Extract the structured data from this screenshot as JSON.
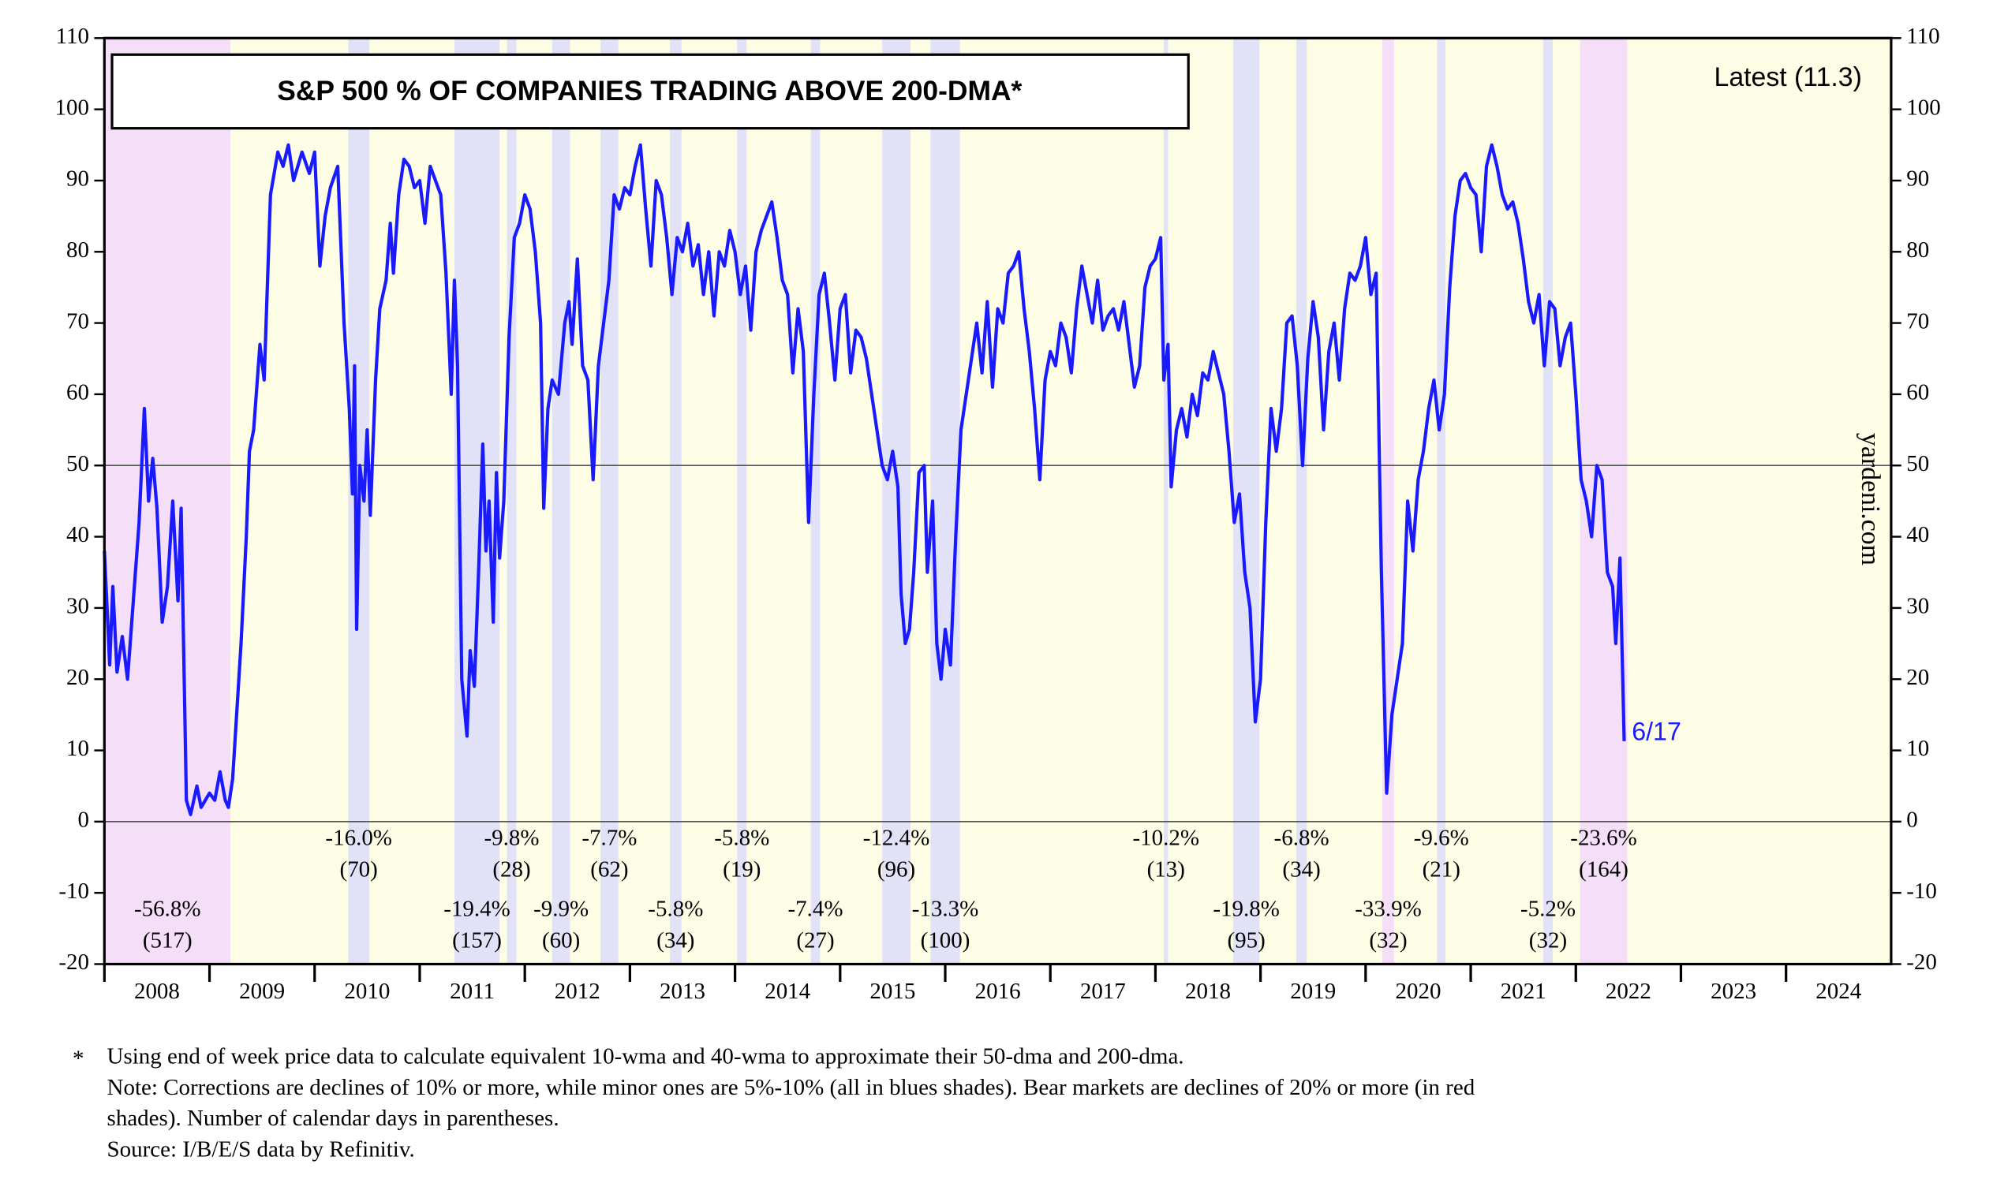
{
  "chart_data": {
    "type": "line",
    "title": "S&P 500 % OF COMPANIES TRADING ABOVE 200-DMA*",
    "latest_label": "Latest (11.3)",
    "end_label": "6/17",
    "watermark": "yardeni.com",
    "footnotes": [
      {
        "marker": "*",
        "text": "Using end of week price data to calculate equivalent 10-wma and 40-wma to approximate their 50-dma and 200-dma."
      },
      {
        "text": "Note: Corrections are declines of 10% or more, while minor ones are 5%-10% (all in blues shades). Bear markets are declines of 20% or more (in red"
      },
      {
        "text": "shades). Number of calendar days in parentheses."
      },
      {
        "text": "Source: I/B/E/S data by Refinitiv."
      }
    ],
    "xlim": [
      2008,
      2025
    ],
    "xticks": [
      2008,
      2009,
      2010,
      2011,
      2012,
      2013,
      2014,
      2015,
      2016,
      2017,
      2018,
      2019,
      2020,
      2021,
      2022,
      2023,
      2024
    ],
    "ylim": [
      -20,
      110
    ],
    "yticks": [
      -20,
      -10,
      0,
      10,
      20,
      30,
      40,
      50,
      60,
      70,
      80,
      90,
      100,
      110
    ],
    "reference_lines": [
      0,
      50
    ],
    "colors": {
      "background": "#fdfde6",
      "bear": "#f5dff8",
      "correction": "#e1e2f8"
    },
    "events": [
      {
        "start": 2008.0,
        "end": 2009.2,
        "kind": "bear",
        "decline": "-56.8%",
        "days": "(517)"
      },
      {
        "start": 2010.32,
        "end": 2010.52,
        "kind": "correction",
        "decline": "-16.0%",
        "days": "(70)"
      },
      {
        "start": 2011.33,
        "end": 2011.76,
        "kind": "correction",
        "decline": "-19.4%",
        "days": "(157)"
      },
      {
        "start": 2011.83,
        "end": 2011.92,
        "kind": "correction",
        "decline": "-9.8%",
        "days": "(28)"
      },
      {
        "start": 2012.26,
        "end": 2012.43,
        "kind": "correction",
        "decline": "-9.9%",
        "days": "(60)"
      },
      {
        "start": 2012.72,
        "end": 2012.89,
        "kind": "correction",
        "decline": "-7.7%",
        "days": "(62)"
      },
      {
        "start": 2013.38,
        "end": 2013.49,
        "kind": "correction",
        "decline": "-5.8%",
        "days": "(34)"
      },
      {
        "start": 2014.02,
        "end": 2014.11,
        "kind": "correction",
        "decline": "-5.8%",
        "days": "(19)"
      },
      {
        "start": 2014.72,
        "end": 2014.81,
        "kind": "correction",
        "decline": "-7.4%",
        "days": "(27)"
      },
      {
        "start": 2015.4,
        "end": 2015.67,
        "kind": "correction",
        "decline": "-12.4%",
        "days": "(96)"
      },
      {
        "start": 2015.86,
        "end": 2016.14,
        "kind": "correction",
        "decline": "-13.3%",
        "days": "(100)"
      },
      {
        "start": 2018.08,
        "end": 2018.12,
        "kind": "correction",
        "decline": "-10.2%",
        "days": "(13)"
      },
      {
        "start": 2018.74,
        "end": 2018.99,
        "kind": "correction",
        "decline": "-19.8%",
        "days": "(95)"
      },
      {
        "start": 2019.34,
        "end": 2019.44,
        "kind": "correction",
        "decline": "-6.8%",
        "days": "(34)"
      },
      {
        "start": 2020.16,
        "end": 2020.27,
        "kind": "bear",
        "decline": "-33.9%",
        "days": "(32)"
      },
      {
        "start": 2020.68,
        "end": 2020.76,
        "kind": "correction",
        "decline": "-9.6%",
        "days": "(21)"
      },
      {
        "start": 2021.69,
        "end": 2021.78,
        "kind": "correction",
        "decline": "-5.2%",
        "days": "(32)"
      },
      {
        "start": 2022.04,
        "end": 2022.49,
        "kind": "bear",
        "decline": "-23.6%",
        "days": "(164)"
      }
    ],
    "x": [
      2008.0,
      2008.05,
      2008.08,
      2008.12,
      2008.17,
      2008.22,
      2008.27,
      2008.33,
      2008.38,
      2008.42,
      2008.46,
      2008.5,
      2008.55,
      2008.6,
      2008.65,
      2008.7,
      2008.73,
      2008.78,
      2008.82,
      2008.88,
      2008.92,
      2009.0,
      2009.05,
      2009.1,
      2009.15,
      2009.18,
      2009.22,
      2009.3,
      2009.35,
      2009.38,
      2009.42,
      2009.48,
      2009.52,
      2009.58,
      2009.65,
      2009.7,
      2009.75,
      2009.8,
      2009.88,
      2009.95,
      2010.0,
      2010.05,
      2010.1,
      2010.15,
      2010.22,
      2010.28,
      2010.33,
      2010.36,
      2010.38,
      2010.4,
      2010.43,
      2010.47,
      2010.5,
      2010.53,
      2010.58,
      2010.62,
      2010.68,
      2010.72,
      2010.75,
      2010.8,
      2010.85,
      2010.9,
      2010.95,
      2011.0,
      2011.05,
      2011.1,
      2011.2,
      2011.25,
      2011.3,
      2011.33,
      2011.36,
      2011.4,
      2011.45,
      2011.48,
      2011.52,
      2011.56,
      2011.6,
      2011.63,
      2011.66,
      2011.7,
      2011.73,
      2011.76,
      2011.8,
      2011.85,
      2011.9,
      2011.95,
      2012.0,
      2012.05,
      2012.1,
      2012.15,
      2012.18,
      2012.22,
      2012.26,
      2012.32,
      2012.38,
      2012.42,
      2012.45,
      2012.5,
      2012.55,
      2012.6,
      2012.65,
      2012.7,
      2012.75,
      2012.8,
      2012.85,
      2012.9,
      2012.95,
      2013.0,
      2013.05,
      2013.1,
      2013.15,
      2013.2,
      2013.25,
      2013.3,
      2013.35,
      2013.4,
      2013.45,
      2013.5,
      2013.55,
      2013.6,
      2013.65,
      2013.7,
      2013.75,
      2013.8,
      2013.85,
      2013.9,
      2013.95,
      2014.0,
      2014.05,
      2014.1,
      2014.15,
      2014.2,
      2014.25,
      2014.3,
      2014.35,
      2014.4,
      2014.45,
      2014.5,
      2014.55,
      2014.6,
      2014.65,
      2014.7,
      2014.75,
      2014.8,
      2014.85,
      2014.9,
      2014.95,
      2015.0,
      2015.05,
      2015.1,
      2015.15,
      2015.2,
      2015.25,
      2015.3,
      2015.35,
      2015.4,
      2015.45,
      2015.5,
      2015.55,
      2015.58,
      2015.62,
      2015.66,
      2015.7,
      2015.75,
      2015.8,
      2015.83,
      2015.88,
      2015.92,
      2015.96,
      2016.0,
      2016.05,
      2016.1,
      2016.15,
      2016.2,
      2016.25,
      2016.3,
      2016.35,
      2016.4,
      2016.45,
      2016.5,
      2016.55,
      2016.6,
      2016.65,
      2016.7,
      2016.75,
      2016.8,
      2016.85,
      2016.9,
      2016.95,
      2017.0,
      2017.05,
      2017.1,
      2017.15,
      2017.2,
      2017.25,
      2017.3,
      2017.35,
      2017.4,
      2017.45,
      2017.5,
      2017.55,
      2017.6,
      2017.65,
      2017.7,
      2017.75,
      2017.8,
      2017.85,
      2017.9,
      2017.95,
      2018.0,
      2018.05,
      2018.08,
      2018.12,
      2018.15,
      2018.2,
      2018.25,
      2018.3,
      2018.35,
      2018.4,
      2018.45,
      2018.5,
      2018.55,
      2018.6,
      2018.65,
      2018.7,
      2018.75,
      2018.8,
      2018.85,
      2018.9,
      2018.95,
      2019.0,
      2019.05,
      2019.1,
      2019.15,
      2019.2,
      2019.25,
      2019.3,
      2019.35,
      2019.4,
      2019.45,
      2019.5,
      2019.55,
      2019.6,
      2019.65,
      2019.7,
      2019.75,
      2019.8,
      2019.85,
      2019.9,
      2019.95,
      2020.0,
      2020.05,
      2020.1,
      2020.15,
      2020.2,
      2020.25,
      2020.3,
      2020.35,
      2020.4,
      2020.45,
      2020.5,
      2020.55,
      2020.6,
      2020.65,
      2020.7,
      2020.75,
      2020.8,
      2020.85,
      2020.9,
      2020.95,
      2021.0,
      2021.05,
      2021.1,
      2021.15,
      2021.2,
      2021.25,
      2021.3,
      2021.35,
      2021.4,
      2021.45,
      2021.5,
      2021.55,
      2021.6,
      2021.65,
      2021.7,
      2021.75,
      2021.8,
      2021.85,
      2021.9,
      2021.95,
      2022.0,
      2022.05,
      2022.1,
      2022.15,
      2022.2,
      2022.25,
      2022.3,
      2022.35,
      2022.38,
      2022.42,
      2022.46
    ],
    "series": [
      {
        "name": "S&P 500 % of companies trading above 200-dma",
        "color": "#1a1aff",
        "values": [
          38,
          22,
          33,
          21,
          26,
          20,
          30,
          42,
          58,
          45,
          51,
          44,
          28,
          33,
          45,
          31,
          44,
          3,
          1,
          5,
          2,
          4,
          3,
          7,
          3,
          2,
          6,
          25,
          40,
          52,
          55,
          67,
          62,
          88,
          94,
          92,
          95,
          90,
          94,
          91,
          94,
          78,
          85,
          89,
          92,
          70,
          58,
          46,
          64,
          27,
          50,
          45,
          55,
          43,
          62,
          72,
          76,
          84,
          77,
          88,
          93,
          92,
          89,
          90,
          84,
          92,
          88,
          77,
          60,
          76,
          64,
          20,
          12,
          24,
          19,
          35,
          53,
          38,
          45,
          28,
          49,
          37,
          45,
          68,
          82,
          84,
          88,
          86,
          80,
          70,
          44,
          58,
          62,
          60,
          70,
          73,
          67,
          79,
          64,
          62,
          48,
          64,
          70,
          76,
          88,
          86,
          89,
          88,
          92,
          95,
          86,
          78,
          90,
          88,
          82,
          74,
          82,
          80,
          84,
          78,
          81,
          74,
          80,
          71,
          80,
          78,
          83,
          80,
          74,
          78,
          69,
          80,
          83,
          85,
          87,
          82,
          76,
          74,
          63,
          72,
          66,
          42,
          60,
          74,
          77,
          70,
          62,
          72,
          74,
          63,
          69,
          68,
          65,
          60,
          55,
          50,
          48,
          52,
          47,
          32,
          25,
          27,
          35,
          49,
          50,
          35,
          45,
          25,
          20,
          27,
          22,
          40,
          55,
          60,
          65,
          70,
          63,
          73,
          61,
          72,
          70,
          77,
          78,
          80,
          72,
          66,
          58,
          48,
          62,
          66,
          64,
          70,
          68,
          63,
          72,
          78,
          74,
          70,
          76,
          69,
          71,
          72,
          69,
          73,
          67,
          61,
          64,
          75,
          78,
          79,
          82,
          62,
          67,
          47,
          55,
          58,
          54,
          60,
          57,
          63,
          62,
          66,
          63,
          60,
          52,
          42,
          46,
          35,
          30,
          14,
          20,
          42,
          58,
          52,
          58,
          70,
          71,
          64,
          50,
          65,
          73,
          68,
          55,
          66,
          70,
          62,
          72,
          77,
          76,
          78,
          82,
          74,
          77,
          35,
          4,
          15,
          20,
          25,
          45,
          38,
          48,
          52,
          58,
          62,
          55,
          60,
          75,
          85,
          90,
          91,
          89,
          88,
          80,
          92,
          95,
          92,
          88,
          86,
          87,
          84,
          79,
          73,
          70,
          74,
          64,
          73,
          72,
          64,
          68,
          70,
          60,
          48,
          45,
          40,
          50,
          48,
          35,
          33,
          25,
          37,
          11.3
        ]
      }
    ]
  }
}
